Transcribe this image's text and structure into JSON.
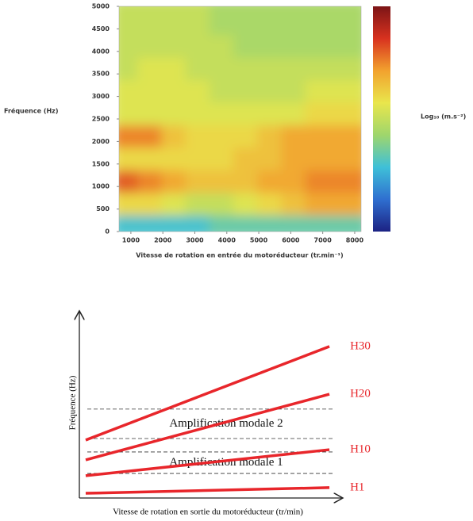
{
  "chart_data": [
    {
      "type": "heatmap",
      "ylabel": "Fréquence (Hz)",
      "xlabel": "Vitesse de rotation en entrée du motoréducteur (tr.min⁻¹)",
      "colorbar_label": "Log₁₀ (m.s⁻²)",
      "xlim": [
        630,
        8200
      ],
      "ylim": [
        0,
        5000
      ],
      "xticks": [
        1000,
        2000,
        3000,
        4000,
        5000,
        6000,
        7000,
        8000
      ],
      "yticks": [
        0,
        500,
        1000,
        1500,
        2000,
        2500,
        3000,
        3500,
        4000,
        4500,
        5000
      ],
      "xbins": [
        630,
        1400,
        2150,
        2900,
        3650,
        4400,
        5150,
        5900,
        6650,
        7400,
        8200
      ],
      "ybins": [
        0,
        500,
        1000,
        1500,
        2000,
        2500,
        3000,
        3500,
        4000,
        4500,
        5000
      ],
      "zlim": [
        0,
        10
      ],
      "colorscale": [
        "#1c2283",
        "#2f6fd0",
        "#3fc0d8",
        "#9fd66c",
        "#e9e64c",
        "#f2a22e",
        "#d8321f",
        "#7c1416"
      ],
      "z": [
        [
          3,
          3,
          3,
          3,
          3.5,
          3.5,
          3.5,
          3.5,
          3.5,
          3.5
        ],
        [
          6,
          6,
          5.5,
          5,
          5,
          5.5,
          6,
          6.5,
          7,
          7
        ],
        [
          8,
          7.5,
          7,
          6.5,
          6.5,
          6.5,
          7,
          7,
          7.5,
          7.5
        ],
        [
          6,
          6,
          6,
          6,
          6,
          6.5,
          6.5,
          7,
          7,
          7
        ],
        [
          7.5,
          7.5,
          6.5,
          6,
          6,
          6,
          6.5,
          7,
          7,
          7
        ],
        [
          5.5,
          5.5,
          5.5,
          5.5,
          5.5,
          5.5,
          5.5,
          5.5,
          6,
          6
        ],
        [
          5.5,
          5.5,
          5.5,
          5.5,
          5,
          5,
          5,
          5,
          5.5,
          5.5
        ],
        [
          5,
          5.5,
          5.5,
          5,
          5,
          5,
          5,
          5,
          5,
          5
        ],
        [
          5,
          5,
          5,
          5,
          5,
          4.5,
          4.5,
          4.5,
          4.5,
          4.5
        ],
        [
          5,
          5,
          5,
          5,
          4.5,
          4.5,
          4.5,
          4.5,
          4.5,
          4.5
        ]
      ]
    },
    {
      "type": "line",
      "ylabel": "Fréquence (Hz)",
      "xlabel": "Vitesse de rotation en sortie du motoréducteur (tr/min)",
      "xlim": [
        0,
        100
      ],
      "ylim": [
        0,
        100
      ],
      "x": [
        2.4,
        94.9
      ],
      "series": [
        {
          "name": "H30",
          "color": "#e8262b",
          "values": [
            30.7,
            80.3
          ]
        },
        {
          "name": "H20",
          "color": "#e8262b",
          "values": [
            20.2,
            55.0
          ]
        },
        {
          "name": "H10",
          "color": "#e8262b",
          "values": [
            11.8,
            25.6
          ]
        },
        {
          "name": "H1",
          "color": "#e8262b",
          "values": [
            2.5,
            5.5
          ]
        }
      ],
      "hlines": [
        47.1,
        31.5,
        24.4,
        13.0
      ],
      "annotations": [
        "Amplification modale 2",
        "Amplification modale 1"
      ]
    }
  ]
}
